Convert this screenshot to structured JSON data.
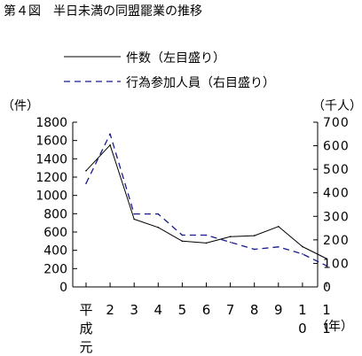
{
  "chart_data": {
    "type": "line",
    "title": "第４図　半日未満の同盟罷業の推移",
    "x_label": "（年）",
    "categories": [
      "平\n成\n元",
      "2",
      "3",
      "4",
      "5",
      "6",
      "7",
      "8",
      "9",
      "1\n0",
      "1\n1"
    ],
    "y_left": {
      "unit": "（件）",
      "range": [
        0,
        1800
      ],
      "ticks": [
        "0",
        "200",
        "400",
        "600",
        "800",
        "1000",
        "1200",
        "1400",
        "1600",
        "1800"
      ]
    },
    "y_right": {
      "unit": "（千人）",
      "range": [
        0,
        700
      ],
      "ticks": [
        "0",
        "100",
        "200",
        "300",
        "400",
        "500",
        "600",
        "700"
      ]
    },
    "grid": false,
    "legend_position": "top-right",
    "series": [
      {
        "name": "件数（左目盛り）",
        "axis": "left",
        "style": "solid",
        "color": "#000000",
        "values": [
          1270,
          1550,
          740,
          650,
          500,
          480,
          550,
          560,
          660,
          440,
          310
        ]
      },
      {
        "name": "行為参加人員（右目盛り）",
        "axis": "right",
        "style": "dashed",
        "color": "#1a1a8c",
        "values": [
          440,
          650,
          310,
          310,
          220,
          220,
          190,
          160,
          170,
          140,
          90
        ]
      }
    ]
  }
}
